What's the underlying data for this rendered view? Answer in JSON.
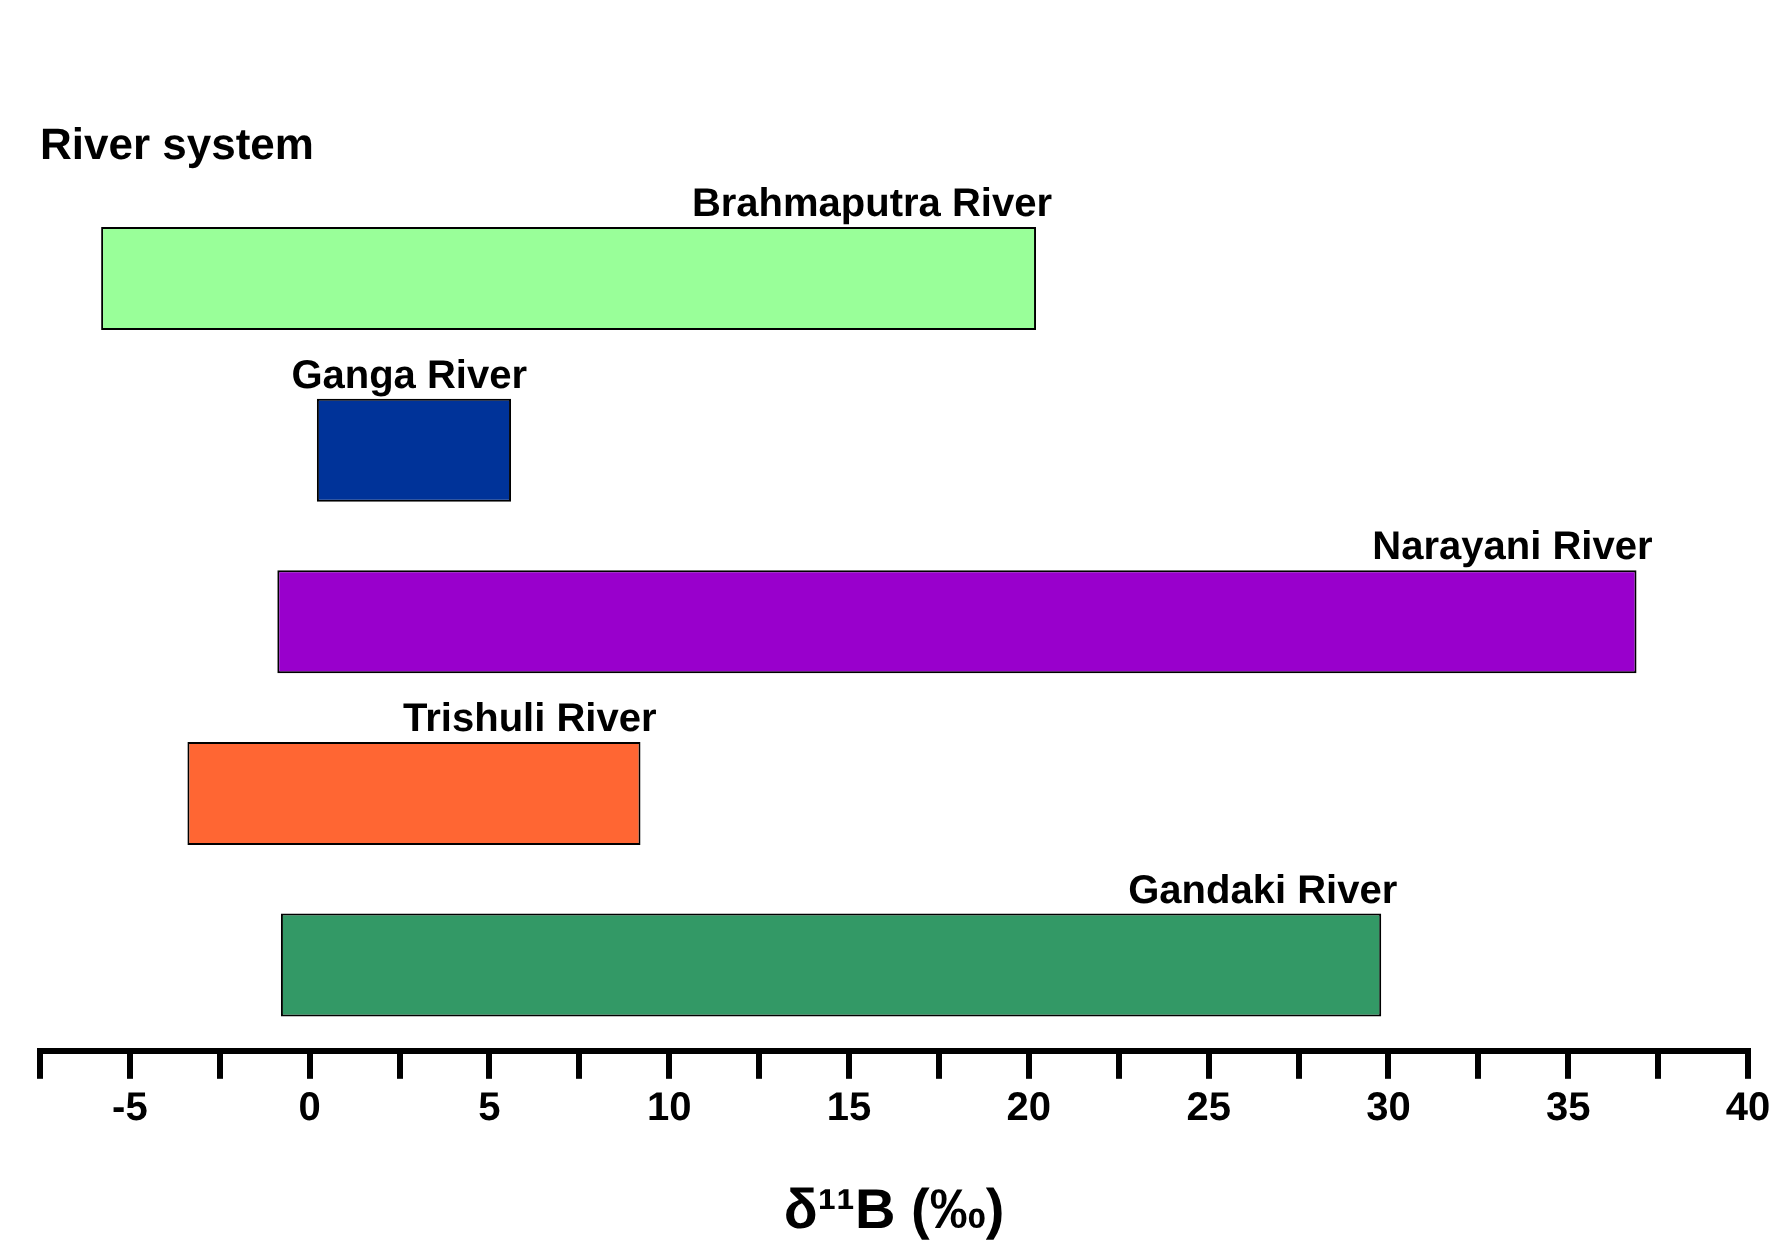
{
  "chart_data": {
    "type": "bar",
    "orientation": "horizontal",
    "title": "River system",
    "xlabel": "δ¹¹B (‰)",
    "categories": [
      "Brahmaputra River",
      "Ganga River",
      "Narayani River",
      "Trishuli River",
      "Gandaki River"
    ],
    "base": [
      -5.8,
      0.2,
      -0.9,
      -3.4,
      -0.8
    ],
    "values": [
      26.0,
      5.4,
      37.8,
      12.6,
      30.6
    ],
    "colors": [
      "#99ff99",
      "#003399",
      "#9900cc",
      "#ff6633",
      "#339966"
    ],
    "xlim": [
      -7.5,
      40
    ],
    "xticks": [
      {
        "value": -7.5,
        "label": null
      },
      -5,
      {
        "value": -2.5,
        "label": null
      },
      0,
      {
        "value": 2.5,
        "label": null
      },
      5,
      {
        "value": 7.5,
        "label": null
      },
      10,
      {
        "value": 12.5,
        "label": null
      },
      15,
      {
        "value": 17.5,
        "label": null
      },
      20,
      {
        "value": 22.5,
        "label": null
      },
      25,
      {
        "value": 27.5,
        "label": null
      },
      30,
      {
        "value": 32.5,
        "label": null
      },
      35,
      {
        "value": 37.5,
        "label": null
      },
      40
    ],
    "grid": false,
    "legend": false
  }
}
